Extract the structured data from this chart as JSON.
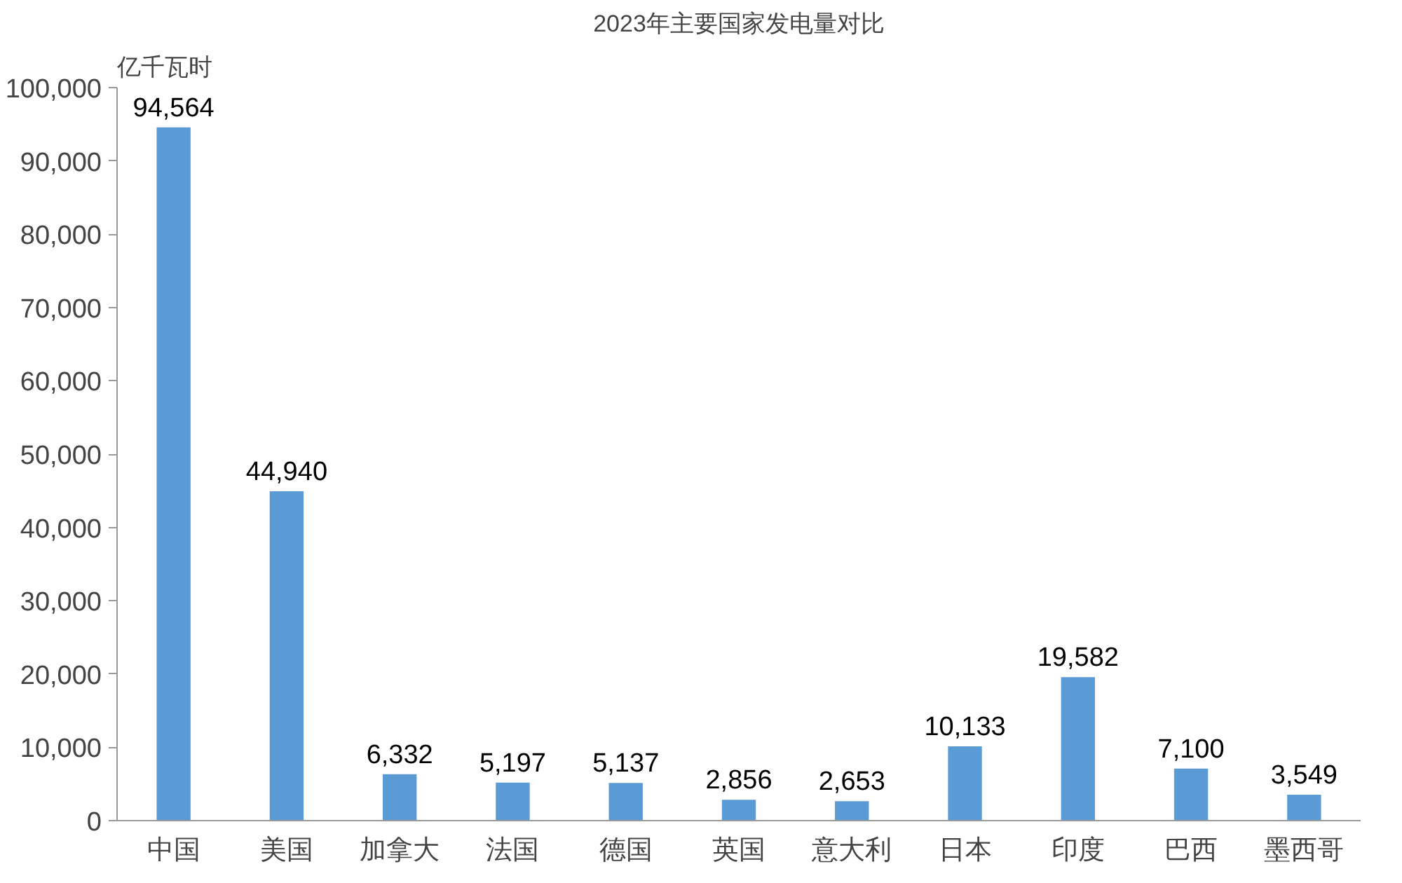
{
  "chart_data": {
    "type": "bar",
    "title": "2023年主要国家发电量对比",
    "ylabel": "亿千瓦时",
    "categories": [
      "中国",
      "美国",
      "加拿大",
      "法国",
      "德国",
      "英国",
      "意大利",
      "日本",
      "印度",
      "巴西",
      "墨西哥"
    ],
    "values": [
      94564,
      44940,
      6332,
      5197,
      5137,
      2856,
      2653,
      10133,
      19582,
      7100,
      3549
    ],
    "value_labels": [
      "94,564",
      "44,940",
      "6,332",
      "5,197",
      "5,137",
      "2,856",
      "2,653",
      "10,133",
      "19,582",
      "7,100",
      "3,549"
    ],
    "color": "#5b9bd5",
    "grid": false,
    "ylim": [
      0,
      100000
    ],
    "yticks": [
      {
        "value": 0,
        "label": "0"
      },
      {
        "value": 10000,
        "label": "10,000"
      },
      {
        "value": 20000,
        "label": "20,000"
      },
      {
        "value": 30000,
        "label": "30,000"
      },
      {
        "value": 40000,
        "label": "40,000"
      },
      {
        "value": 50000,
        "label": "50,000"
      },
      {
        "value": 60000,
        "label": "60,000"
      },
      {
        "value": 70000,
        "label": "70,000"
      },
      {
        "value": 80000,
        "label": "80,000"
      },
      {
        "value": 90000,
        "label": "90,000"
      },
      {
        "value": 100000,
        "label": "100,000"
      }
    ]
  }
}
